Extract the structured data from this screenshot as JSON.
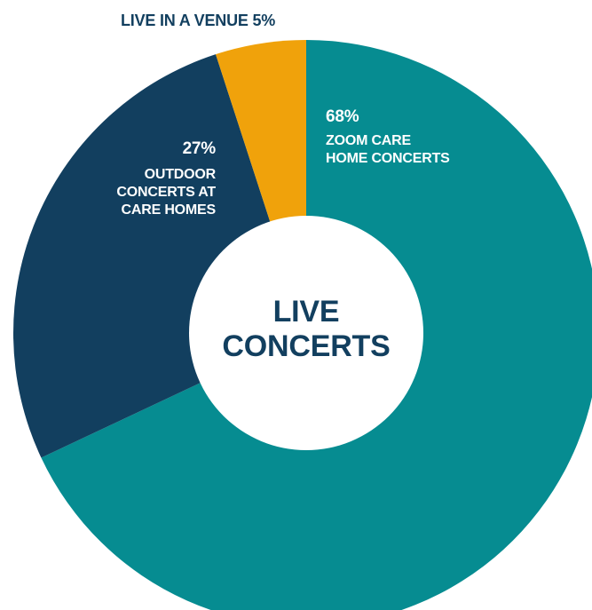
{
  "chart_data": {
    "type": "pie",
    "center_label": [
      "LIVE",
      "CONCERTS"
    ],
    "slices": [
      {
        "name": "ZOOM CARE HOME CONCERTS",
        "label_lines": [
          "ZOOM CARE",
          "HOME CONCERTS"
        ],
        "value": 68,
        "value_text": "68%",
        "color": "#068C91"
      },
      {
        "name": "OUTDOOR CONCERTS AT CARE HOMES",
        "label_lines": [
          "OUTDOOR",
          "CONCERTS AT",
          "CARE HOMES"
        ],
        "value": 27,
        "value_text": "27%",
        "color": "#123F5F"
      },
      {
        "name": "LIVE IN A VENUE",
        "label_lines": [
          "LIVE IN A VENUE 5%"
        ],
        "value": 5,
        "value_text": "5%",
        "color": "#F0A20B"
      }
    ]
  },
  "colors": {
    "center_text": "#123F5F",
    "slice_label_text": "#ffffff",
    "outside_label_text": "#123F5F",
    "background": "#ffffff"
  }
}
